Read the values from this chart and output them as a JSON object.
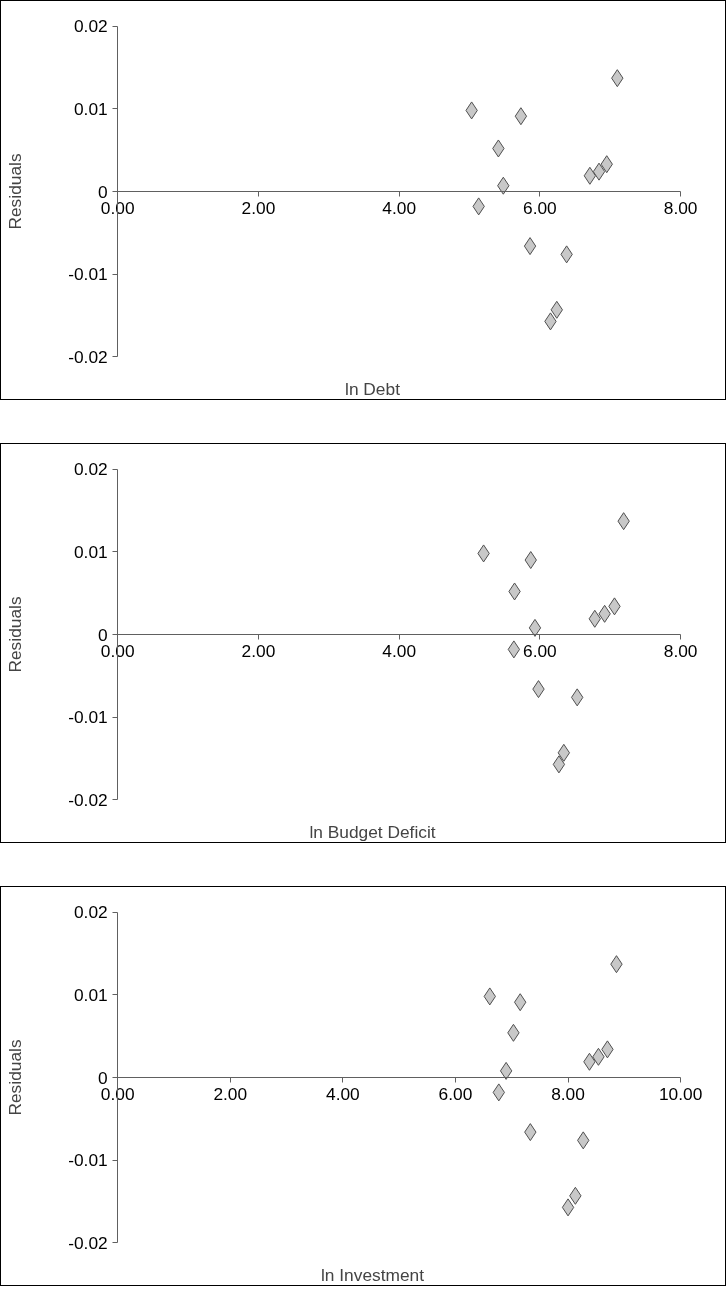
{
  "chart_data": [
    {
      "type": "scatter",
      "xlabel": "ln Debt",
      "ylabel": "Residuals",
      "marker": "diamond",
      "grid": false,
      "xlim": [
        0,
        8
      ],
      "ylim": [
        -0.02,
        0.02
      ],
      "xticks": [
        {
          "value": 0,
          "label": "0.00"
        },
        {
          "value": 2,
          "label": "2.00"
        },
        {
          "value": 4,
          "label": "4.00"
        },
        {
          "value": 6,
          "label": "6.00"
        },
        {
          "value": 8,
          "label": "8.00"
        }
      ],
      "yticks": [
        -0.02,
        -0.01,
        0,
        0.01,
        0.02
      ],
      "series": [
        {
          "color": "#c8c8c8",
          "x": [
            5.03,
            5.13,
            5.41,
            5.48,
            5.73,
            5.86,
            6.15,
            6.24,
            6.38,
            6.71,
            6.84,
            6.95,
            7.1
          ],
          "values": [
            0.0098,
            -0.0018,
            0.0052,
            0.0007,
            0.0091,
            -0.0066,
            -0.0157,
            -0.0143,
            -0.0076,
            0.0019,
            0.0024,
            0.0033,
            0.0137
          ]
        }
      ]
    },
    {
      "type": "scatter",
      "xlabel": "ln Budget Deficit",
      "ylabel": "Residuals",
      "marker": "diamond",
      "grid": false,
      "xlim": [
        0,
        8
      ],
      "ylim": [
        -0.02,
        0.02
      ],
      "xticks": [
        {
          "value": 0,
          "label": "0.00"
        },
        {
          "value": 2,
          "label": "2.00"
        },
        {
          "value": 4,
          "label": "4.00"
        },
        {
          "value": 6,
          "label": "6.00"
        },
        {
          "value": 8,
          "label": "8.00"
        }
      ],
      "yticks": [
        -0.02,
        -0.01,
        0,
        0.01,
        0.02
      ],
      "series": [
        {
          "color": "#c8c8c8",
          "x": [
            5.2,
            5.64,
            5.63,
            5.87,
            5.93,
            5.98,
            6.53,
            6.27,
            6.34,
            6.78,
            6.92,
            7.06,
            7.19
          ],
          "values": [
            0.0098,
            0.0052,
            -0.0018,
            0.009,
            0.0008,
            -0.0066,
            -0.0076,
            -0.0157,
            -0.0143,
            0.0019,
            0.0025,
            0.0034,
            0.0137
          ]
        }
      ]
    },
    {
      "type": "scatter",
      "xlabel": "ln Investment",
      "ylabel": "Residuals",
      "marker": "diamond",
      "grid": false,
      "xlim": [
        0,
        10
      ],
      "ylim": [
        -0.02,
        0.02
      ],
      "xticks": [
        {
          "value": 0,
          "label": "0.00"
        },
        {
          "value": 2,
          "label": "2.00"
        },
        {
          "value": 4,
          "label": "4.00"
        },
        {
          "value": 6,
          "label": "6.00"
        },
        {
          "value": 8,
          "label": "8.00"
        },
        {
          "value": 10,
          "label": "10.00"
        }
      ],
      "yticks": [
        -0.02,
        -0.01,
        0,
        0.01,
        0.02
      ],
      "series": [
        {
          "color": "#c8c8c8",
          "x": [
            6.61,
            6.77,
            6.9,
            7.03,
            7.15,
            7.33,
            8.0,
            8.13,
            8.27,
            8.38,
            8.54,
            8.7,
            8.86
          ],
          "values": [
            0.0098,
            -0.0018,
            0.0008,
            0.0054,
            0.0091,
            -0.0066,
            -0.0157,
            -0.0143,
            -0.0076,
            0.0019,
            0.0025,
            0.0034,
            0.0137
          ]
        }
      ]
    }
  ]
}
